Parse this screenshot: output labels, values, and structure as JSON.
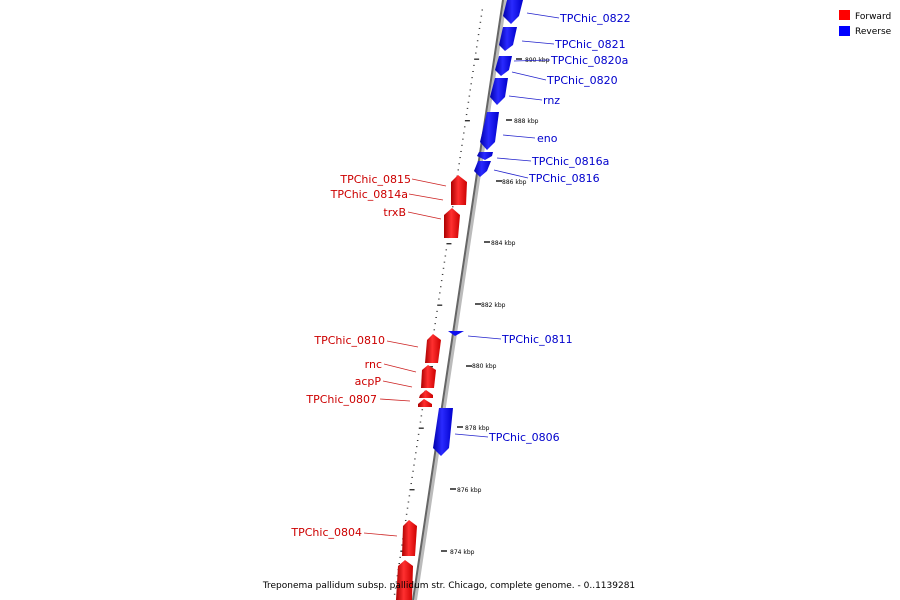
{
  "caption": "Treponema pallidum subsp. pallidum str. Chicago, complete genome. - 0..1139281",
  "legend": [
    {
      "label": "Forward",
      "color": "#ff0000"
    },
    {
      "label": "Reverse",
      "color": "#0000ff"
    }
  ],
  "axis_ticks": [
    "890 kbp",
    "888 kbp",
    "886 kbp",
    "884 kbp",
    "882 kbp",
    "880 kbp",
    "878 kbp",
    "876 kbp",
    "874 kbp"
  ],
  "reverse_genes": [
    "TPChic_0822",
    "TPChic_0821",
    "TPChic_0820a",
    "TPChic_0820",
    "rnz",
    "eno",
    "TPChic_0816a",
    "TPChic_0816",
    "TPChic_0811",
    "TPChic_0806"
  ],
  "forward_genes": [
    "TPChic_0815",
    "TPChic_0814a",
    "trxB",
    "TPChic_0810",
    "rnc",
    "acpP",
    "TPChic_0807",
    "TPChic_0804"
  ],
  "colors": {
    "forward": "#ff0000",
    "reverse": "#0000ff",
    "forward_label": "#cc0000",
    "reverse_label": "#0000cc"
  }
}
